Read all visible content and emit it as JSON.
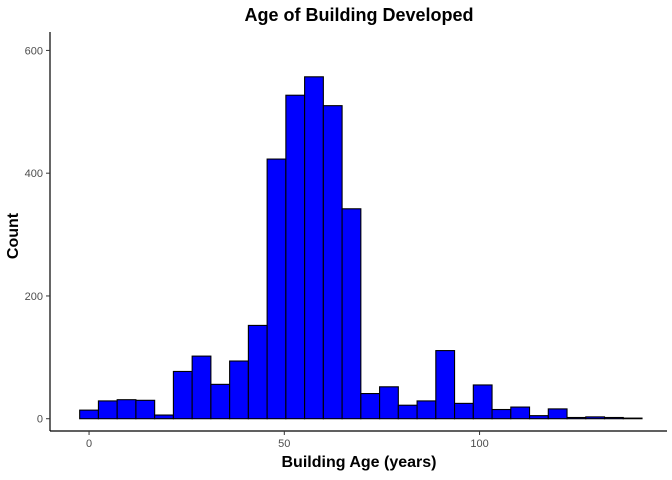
{
  "chart_data": {
    "type": "bar",
    "title": "Age of Building Developed",
    "xlabel": "Building Age (years)",
    "ylabel": "Count",
    "bin_width": 4.8,
    "bin_edges_start": -2.4,
    "counts": [
      14,
      29,
      31,
      30,
      6,
      77,
      102,
      56,
      94,
      152,
      423,
      527,
      557,
      510,
      342,
      41,
      52,
      22,
      29,
      111,
      25,
      55,
      15,
      19,
      5,
      16,
      2,
      3,
      2,
      1
    ],
    "xlim": [
      -10,
      148
    ],
    "ylim": [
      -20,
      630
    ],
    "x_ticks": [
      0,
      50,
      100
    ],
    "y_ticks": [
      0,
      200,
      400,
      600
    ],
    "x_tick_labels": [
      "0",
      "50",
      "100"
    ],
    "y_tick_labels": [
      "0",
      "200",
      "400",
      "600"
    ],
    "bar_fill": "#0000ff",
    "bar_stroke": "#000000",
    "grid": false
  }
}
